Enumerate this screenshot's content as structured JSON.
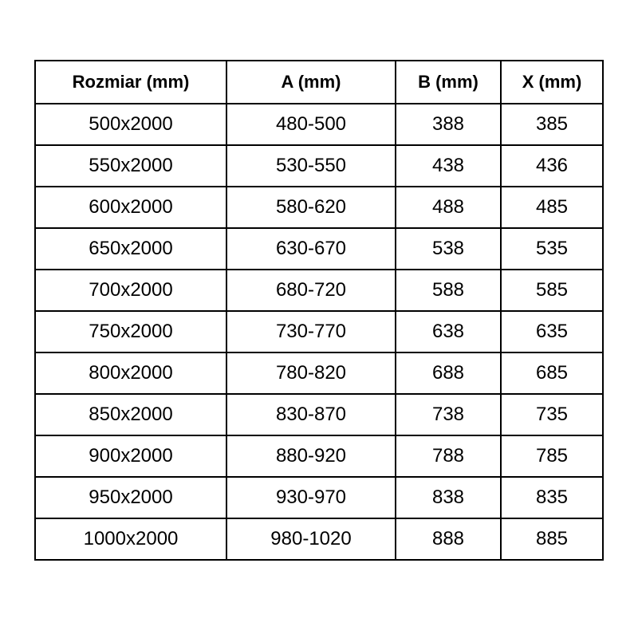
{
  "page": {
    "background_color": "#ffffff",
    "text_color": "#000000",
    "border_color": "#000000"
  },
  "chart_data": {
    "type": "table",
    "title": "",
    "columns": [
      "Rozmiar (mm)",
      "A (mm)",
      "B (mm)",
      "X (mm)"
    ],
    "rows": [
      [
        "500x2000",
        "480-500",
        "388",
        "385"
      ],
      [
        "550x2000",
        "530-550",
        "438",
        "436"
      ],
      [
        "600x2000",
        "580-620",
        "488",
        "485"
      ],
      [
        "650x2000",
        "630-670",
        "538",
        "535"
      ],
      [
        "700x2000",
        "680-720",
        "588",
        "585"
      ],
      [
        "750x2000",
        "730-770",
        "638",
        "635"
      ],
      [
        "800x2000",
        "780-820",
        "688",
        "685"
      ],
      [
        "850x2000",
        "830-870",
        "738",
        "735"
      ],
      [
        "900x2000",
        "880-920",
        "788",
        "785"
      ],
      [
        "950x2000",
        "930-970",
        "838",
        "835"
      ],
      [
        "1000x2000",
        "980-1020",
        "888",
        "885"
      ]
    ]
  }
}
